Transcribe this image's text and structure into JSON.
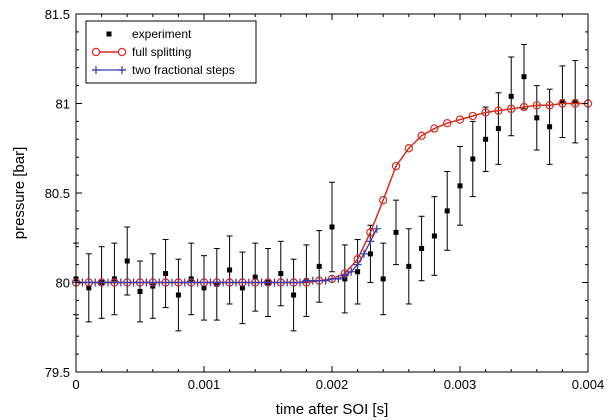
{
  "chart_data": {
    "type": "scatter",
    "xlabel": "time after SOI [s]",
    "ylabel": "pressure [bar]",
    "xlim": [
      0,
      0.004
    ],
    "ylim": [
      79.5,
      81.5
    ],
    "x_ticks": [
      0,
      0.001,
      0.002,
      0.003,
      0.004
    ],
    "x_tick_labels": [
      "0",
      "0.001",
      "0.002",
      "0.003",
      "0.004"
    ],
    "y_ticks": [
      79.5,
      80,
      80.5,
      81,
      81.5
    ],
    "y_tick_labels": [
      "79.5",
      "80",
      "80.5",
      "81",
      "81.5"
    ],
    "grid": false,
    "legend_position": "top-left",
    "series": [
      {
        "name": "experiment",
        "kind": "points-with-error-bars",
        "color": "#000000",
        "x": [
          0.0,
          0.0001,
          0.0002,
          0.0003,
          0.0004,
          0.0005,
          0.0006,
          0.0007,
          0.0008,
          0.0009,
          0.001,
          0.0011,
          0.0012,
          0.0013,
          0.0014,
          0.0015,
          0.0016,
          0.0017,
          0.0018,
          0.0019,
          0.002,
          0.0021,
          0.0022,
          0.0023,
          0.0024,
          0.0025,
          0.0026,
          0.0027,
          0.0028,
          0.0029,
          0.003,
          0.0031,
          0.0032,
          0.0033,
          0.0034,
          0.0035,
          0.0036,
          0.0037,
          0.0038,
          0.0039
        ],
        "y": [
          80.02,
          79.97,
          80.0,
          80.02,
          80.12,
          79.95,
          79.98,
          80.05,
          79.93,
          80.02,
          79.97,
          79.99,
          80.07,
          79.97,
          80.03,
          80.0,
          80.05,
          79.93,
          80.01,
          80.09,
          80.31,
          80.02,
          80.06,
          80.16,
          80.02,
          80.28,
          80.09,
          80.19,
          80.26,
          80.4,
          80.54,
          80.69,
          80.8,
          80.86,
          81.04,
          81.15,
          80.92,
          80.87,
          81.01,
          81.01
        ],
        "err": [
          0.2,
          0.19,
          0.2,
          0.2,
          0.19,
          0.17,
          0.18,
          0.19,
          0.2,
          0.2,
          0.18,
          0.2,
          0.19,
          0.2,
          0.19,
          0.19,
          0.18,
          0.2,
          0.2,
          0.2,
          0.25,
          0.19,
          0.18,
          0.16,
          0.2,
          0.18,
          0.21,
          0.18,
          0.22,
          0.22,
          0.22,
          0.21,
          0.18,
          0.2,
          0.22,
          0.18,
          0.18,
          0.21,
          0.2,
          0.23
        ]
      },
      {
        "name": "full splitting",
        "kind": "line-with-circles",
        "color": "#d62d20",
        "x": [
          0.0,
          0.0001,
          0.0002,
          0.0003,
          0.0004,
          0.0005,
          0.0006,
          0.0007,
          0.0008,
          0.0009,
          0.001,
          0.0011,
          0.0012,
          0.0013,
          0.0014,
          0.0015,
          0.0016,
          0.0017,
          0.0018,
          0.0019,
          0.002,
          0.0021,
          0.0022,
          0.0023,
          0.0024,
          0.0025,
          0.0026,
          0.0027,
          0.0028,
          0.0029,
          0.003,
          0.0031,
          0.0032,
          0.0033,
          0.0034,
          0.0035,
          0.0036,
          0.0037,
          0.0038,
          0.0039,
          0.004
        ],
        "y": [
          80.0,
          80.0,
          80.0,
          80.0,
          80.0,
          80.0,
          80.0,
          80.0,
          80.0,
          80.0,
          80.0,
          80.0,
          80.0,
          80.0,
          80.0,
          80.0,
          80.0,
          80.0,
          80.0,
          80.01,
          80.02,
          80.05,
          80.13,
          80.28,
          80.46,
          80.65,
          80.75,
          80.82,
          80.86,
          80.89,
          80.91,
          80.93,
          80.95,
          80.96,
          80.97,
          80.98,
          80.99,
          80.99,
          81.0,
          81.0,
          81.0
        ]
      },
      {
        "name": "two fractional steps",
        "kind": "line-with-plus",
        "color": "#3a3aa6",
        "x": [
          0.0,
          5e-05,
          0.0001,
          0.00015,
          0.0002,
          0.00025,
          0.0003,
          0.00035,
          0.0004,
          0.00045,
          0.0005,
          0.00055,
          0.0006,
          0.00065,
          0.0007,
          0.00075,
          0.0008,
          0.00085,
          0.0009,
          0.00095,
          0.001,
          0.00105,
          0.0011,
          0.00115,
          0.0012,
          0.00125,
          0.0013,
          0.00135,
          0.0014,
          0.00145,
          0.0015,
          0.00155,
          0.0016,
          0.00165,
          0.0017,
          0.00175,
          0.0018,
          0.00185,
          0.0019,
          0.00195,
          0.002,
          0.00205,
          0.0021,
          0.00215,
          0.0022,
          0.00225,
          0.0023,
          0.00235
        ],
        "y": [
          80.0,
          80.0,
          80.0,
          80.0,
          80.0,
          80.0,
          80.0,
          80.0,
          80.0,
          80.0,
          80.0,
          80.0,
          80.0,
          80.0,
          80.0,
          80.0,
          80.0,
          80.0,
          80.0,
          80.0,
          80.0,
          80.0,
          80.0,
          80.0,
          80.0,
          80.0,
          80.0,
          80.0,
          80.0,
          80.0,
          80.0,
          80.0,
          80.0,
          80.0,
          80.0,
          80.0,
          80.01,
          80.01,
          80.01,
          80.01,
          80.02,
          80.02,
          80.04,
          80.06,
          80.1,
          80.16,
          80.23,
          80.3
        ]
      }
    ]
  }
}
